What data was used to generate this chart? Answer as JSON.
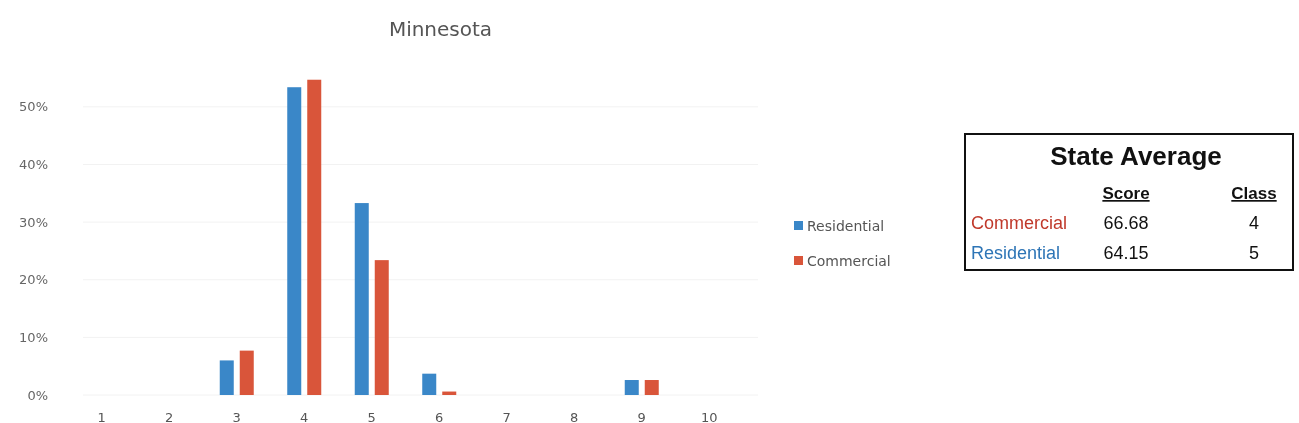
{
  "chart_data": [
    {
      "type": "bar",
      "title": "Minnesota",
      "categories": [
        "1",
        "2",
        "3",
        "4",
        "5",
        "6",
        "7",
        "8",
        "9",
        "10"
      ],
      "series": [
        {
          "name": "Residential",
          "color": "#3a87c8",
          "values": [
            0,
            0,
            6.0,
            53.4,
            33.3,
            3.7,
            0,
            0,
            2.6,
            0
          ]
        },
        {
          "name": "Commercial",
          "color": "#d9553a",
          "values": [
            0,
            0,
            7.7,
            54.7,
            23.4,
            0.6,
            0,
            0,
            2.6,
            0
          ]
        }
      ],
      "ylim": [
        0,
        55
      ],
      "yticks": [
        {
          "value": 0,
          "label": "0%"
        },
        {
          "value": 10,
          "label": "10%"
        },
        {
          "value": 20,
          "label": "20%"
        },
        {
          "value": 30,
          "label": "30%"
        },
        {
          "value": 40,
          "label": "40%"
        },
        {
          "value": 50,
          "label": "50%"
        }
      ],
      "grid": "y",
      "legend": "right"
    },
    {
      "type": "other",
      "title": "State Average",
      "categories": [
        "Commercial",
        "Residential"
      ],
      "colors": [
        "#c0392b",
        "#2e75b6"
      ],
      "series": [
        {
          "name": "Score",
          "values": [
            66.68,
            64.15
          ]
        },
        {
          "name": "Class",
          "values": [
            4,
            5
          ]
        }
      ],
      "data_labels": true
    }
  ]
}
